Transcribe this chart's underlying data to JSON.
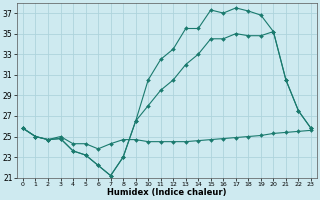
{
  "xlabel": "Humidex (Indice chaleur)",
  "bg_color": "#ceeaf0",
  "grid_color": "#aed4dc",
  "line_color": "#1a7a6e",
  "xlim": [
    -0.5,
    23.5
  ],
  "ylim": [
    21,
    38
  ],
  "yticks": [
    21,
    23,
    25,
    27,
    29,
    31,
    33,
    35,
    37
  ],
  "xticks": [
    0,
    1,
    2,
    3,
    4,
    5,
    6,
    7,
    8,
    9,
    10,
    11,
    12,
    13,
    14,
    15,
    16,
    17,
    18,
    19,
    20,
    21,
    22,
    23
  ],
  "series": [
    {
      "x": [
        0,
        1,
        2,
        3,
        4,
        5,
        6,
        7,
        8,
        9,
        10,
        11,
        12,
        13,
        14,
        15,
        16,
        17,
        18,
        19,
        20,
        21,
        22,
        23
      ],
      "y": [
        25.8,
        25.0,
        24.7,
        24.8,
        23.6,
        23.2,
        22.2,
        21.2,
        23.0,
        26.5,
        30.5,
        32.5,
        33.5,
        35.5,
        35.5,
        37.3,
        37.0,
        37.5,
        37.2,
        36.8,
        35.2,
        30.5,
        27.5,
        25.8
      ]
    },
    {
      "x": [
        0,
        1,
        2,
        3,
        4,
        5,
        6,
        7,
        8,
        9,
        10,
        11,
        12,
        13,
        14,
        15,
        16,
        17,
        18,
        19,
        20,
        21,
        22,
        23
      ],
      "y": [
        25.8,
        25.0,
        24.7,
        24.8,
        23.6,
        23.2,
        22.2,
        21.2,
        23.0,
        26.5,
        28.0,
        29.5,
        30.5,
        32.0,
        33.0,
        34.5,
        34.5,
        35.0,
        34.8,
        34.8,
        35.2,
        30.5,
        27.5,
        25.8
      ]
    },
    {
      "x": [
        0,
        1,
        2,
        3,
        4,
        5,
        6,
        7,
        8,
        9,
        10,
        11,
        12,
        13,
        14,
        15,
        16,
        17,
        18,
        19,
        20,
        21,
        22,
        23
      ],
      "y": [
        25.8,
        25.0,
        24.7,
        25.0,
        24.3,
        24.3,
        23.8,
        24.3,
        24.7,
        24.7,
        24.5,
        24.5,
        24.5,
        24.5,
        24.6,
        24.7,
        24.8,
        24.9,
        25.0,
        25.1,
        25.3,
        25.4,
        25.5,
        25.6
      ]
    }
  ]
}
